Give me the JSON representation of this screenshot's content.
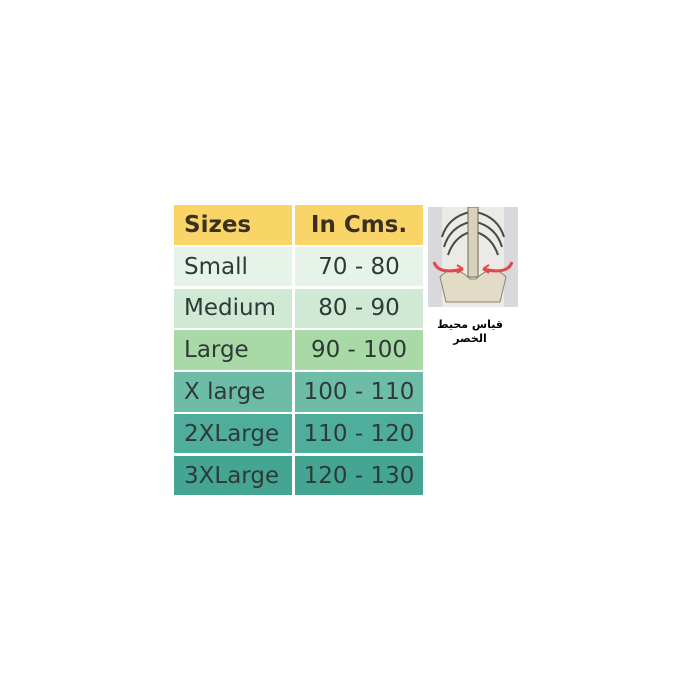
{
  "table": {
    "headers": [
      "Sizes",
      "In Cms."
    ],
    "rows": [
      {
        "size": "Small",
        "range": "70 - 80"
      },
      {
        "size": "Medium",
        "range": "80 - 90"
      },
      {
        "size": "Large",
        "range": "90 - 100"
      },
      {
        "size": "X large",
        "range": "100 - 110"
      },
      {
        "size": "2XLarge",
        "range": "110 - 120"
      },
      {
        "size": "3XLarge",
        "range": "120 - 130"
      }
    ],
    "colors": {
      "header": "#f9d568",
      "rows": [
        "#e5f3e9",
        "#cfe9d5",
        "#a9d9a7",
        "#6dbda6",
        "#4fae9b",
        "#43a592"
      ]
    }
  },
  "figure": {
    "icon": "waist-skeleton-illustration",
    "caption_line1": "قياس محيط",
    "caption_line2": "الخصر"
  }
}
